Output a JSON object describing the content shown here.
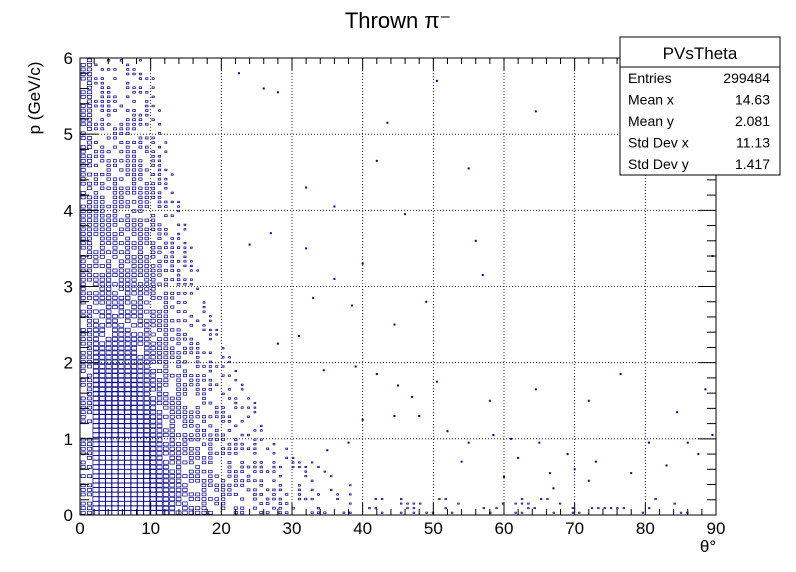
{
  "chart_data": {
    "type": "heatmap",
    "title": "Thrown π⁻",
    "xlabel": "θ°",
    "ylabel": "p (GeV/c)",
    "xlim": [
      0,
      90
    ],
    "ylim": [
      0,
      6
    ],
    "xticks": [
      "0",
      "10",
      "20",
      "30",
      "40",
      "50",
      "60",
      "70",
      "80",
      "90"
    ],
    "yticks": [
      "0",
      "1",
      "2",
      "3",
      "4",
      "5",
      "6"
    ],
    "grid": true,
    "marker_color": "#000080",
    "stats": {
      "name": "PVsTheta",
      "rows": [
        {
          "label": "Entries",
          "value": "299484"
        },
        {
          "label": "Mean x",
          "value": "14.63"
        },
        {
          "label": "Mean y",
          "value": "2.081"
        },
        {
          "label": "Std Dev x",
          "value": "11.13"
        },
        {
          "label": "Std Dev y",
          "value": "1.417"
        }
      ]
    },
    "outliers": [
      [
        22.5,
        5.8
      ],
      [
        26,
        5.6
      ],
      [
        28,
        5.55
      ],
      [
        42,
        4.65
      ],
      [
        43.5,
        5.15
      ],
      [
        50.5,
        5.7
      ],
      [
        55,
        4.55
      ],
      [
        64.5,
        5.3
      ],
      [
        32,
        4.3
      ],
      [
        36,
        4.05
      ],
      [
        46,
        3.95
      ],
      [
        24,
        3.55
      ],
      [
        27,
        3.7
      ],
      [
        32,
        3.5
      ],
      [
        56,
        3.6
      ],
      [
        57,
        3.15
      ],
      [
        89.5,
        3.4
      ],
      [
        40,
        3.3
      ],
      [
        36,
        3.1
      ],
      [
        33,
        2.85
      ],
      [
        49,
        2.8
      ],
      [
        44.5,
        2.5
      ],
      [
        38.5,
        2.75
      ],
      [
        31,
        2.35
      ],
      [
        28,
        2.25
      ],
      [
        34.5,
        1.9
      ],
      [
        39,
        1.95
      ],
      [
        42,
        1.85
      ],
      [
        45,
        1.7
      ],
      [
        47,
        1.55
      ],
      [
        50.5,
        1.75
      ],
      [
        58,
        1.5
      ],
      [
        64.5,
        1.65
      ],
      [
        72,
        1.5
      ],
      [
        76.5,
        1.85
      ],
      [
        84.5,
        1.35
      ],
      [
        88.5,
        1.65
      ],
      [
        40,
        1.25
      ],
      [
        44.5,
        1.3
      ],
      [
        48,
        1.3
      ],
      [
        52,
        1.1
      ],
      [
        55,
        0.95
      ],
      [
        58.5,
        1.05
      ],
      [
        61,
        1.0
      ],
      [
        65,
        0.95
      ],
      [
        69,
        0.8
      ],
      [
        73,
        0.7
      ],
      [
        80.5,
        0.95
      ],
      [
        86,
        0.95
      ],
      [
        89.5,
        1.05
      ],
      [
        35,
        0.85
      ],
      [
        38,
        0.95
      ],
      [
        62,
        0.75
      ],
      [
        66.5,
        0.55
      ],
      [
        70,
        0.6
      ],
      [
        78,
        0.55
      ],
      [
        83,
        0.65
      ],
      [
        87.5,
        0.8
      ],
      [
        54,
        0.7
      ],
      [
        60,
        0.5
      ],
      [
        67,
        0.35
      ],
      [
        72,
        0.45
      ]
    ],
    "outlier_note": "isolated single-entry bins"
  }
}
